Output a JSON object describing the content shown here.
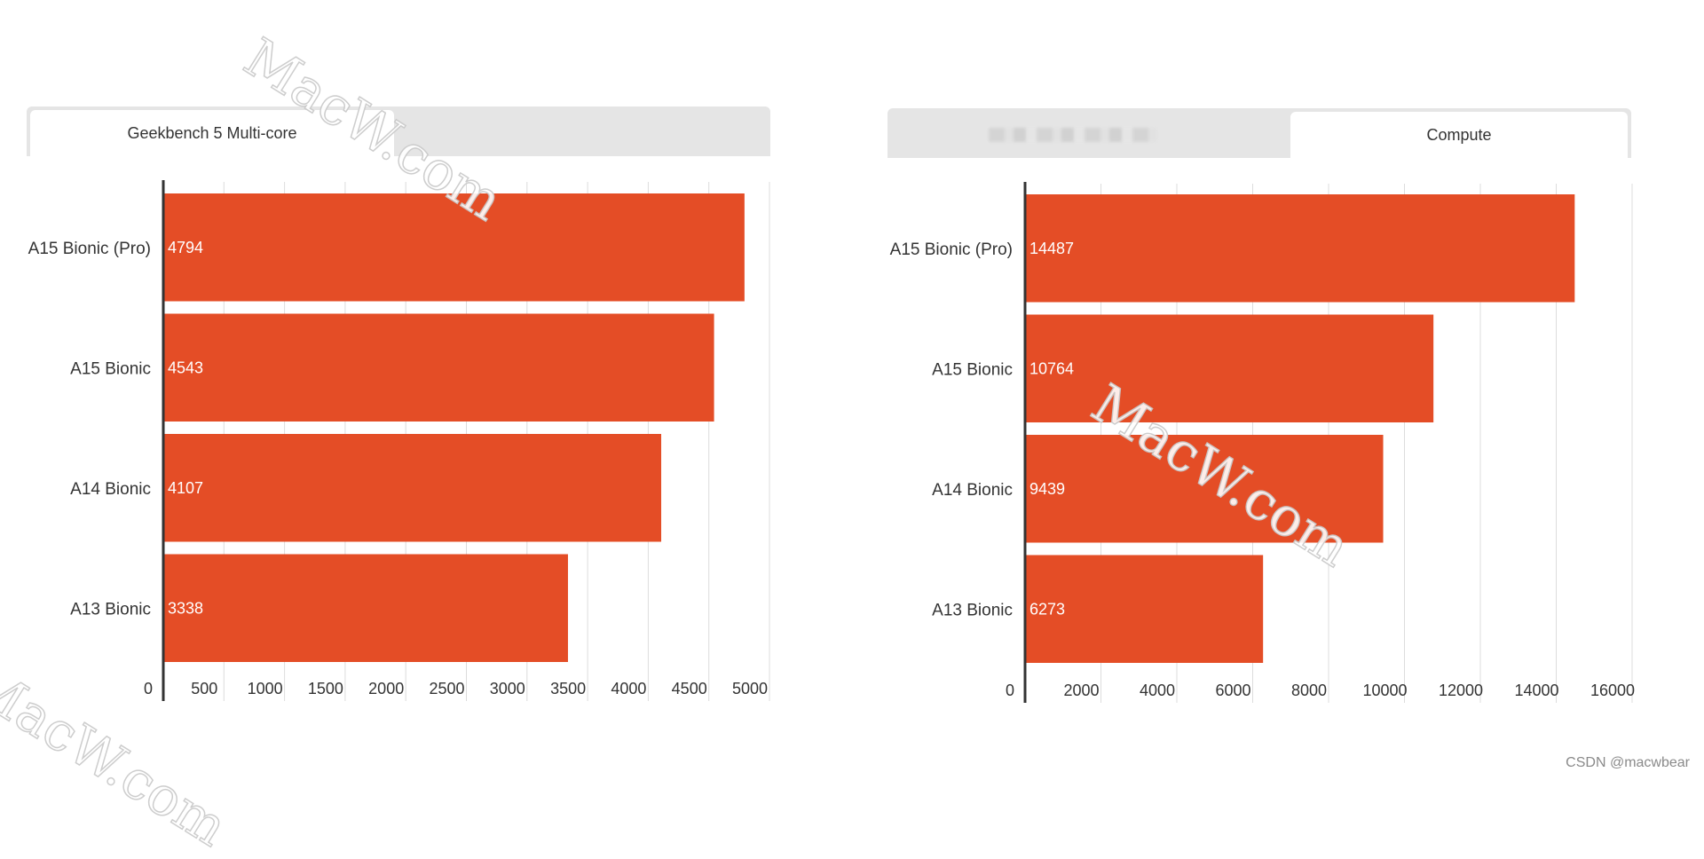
{
  "chart_data": [
    {
      "type": "bar",
      "orientation": "horizontal",
      "tabs": [
        "Geekbench 5 Multi-core"
      ],
      "active_tab": 0,
      "categories": [
        "A15 Bionic (Pro)",
        "A15 Bionic",
        "A14 Bionic",
        "A13 Bionic"
      ],
      "values": [
        4794,
        4543,
        4107,
        3338
      ],
      "xlim": [
        0,
        5000
      ],
      "xticks": [
        0,
        500,
        1000,
        1500,
        2000,
        2500,
        3000,
        3500,
        4000,
        4500,
        5000
      ],
      "grid": true,
      "bar_color": "#e44d26"
    },
    {
      "type": "bar",
      "orientation": "horizontal",
      "tabs": [
        "",
        "Compute"
      ],
      "active_tab": 1,
      "categories": [
        "A15 Bionic (Pro)",
        "A15 Bionic",
        "A14 Bionic",
        "A13 Bionic"
      ],
      "values": [
        14487,
        10764,
        9439,
        6273
      ],
      "xlim": [
        0,
        16000
      ],
      "xticks": [
        0,
        2000,
        4000,
        6000,
        8000,
        10000,
        12000,
        14000,
        16000
      ],
      "grid": true,
      "bar_color": "#e44d26"
    }
  ],
  "watermark": "MacW.com",
  "credit": "CSDN @macwbear"
}
